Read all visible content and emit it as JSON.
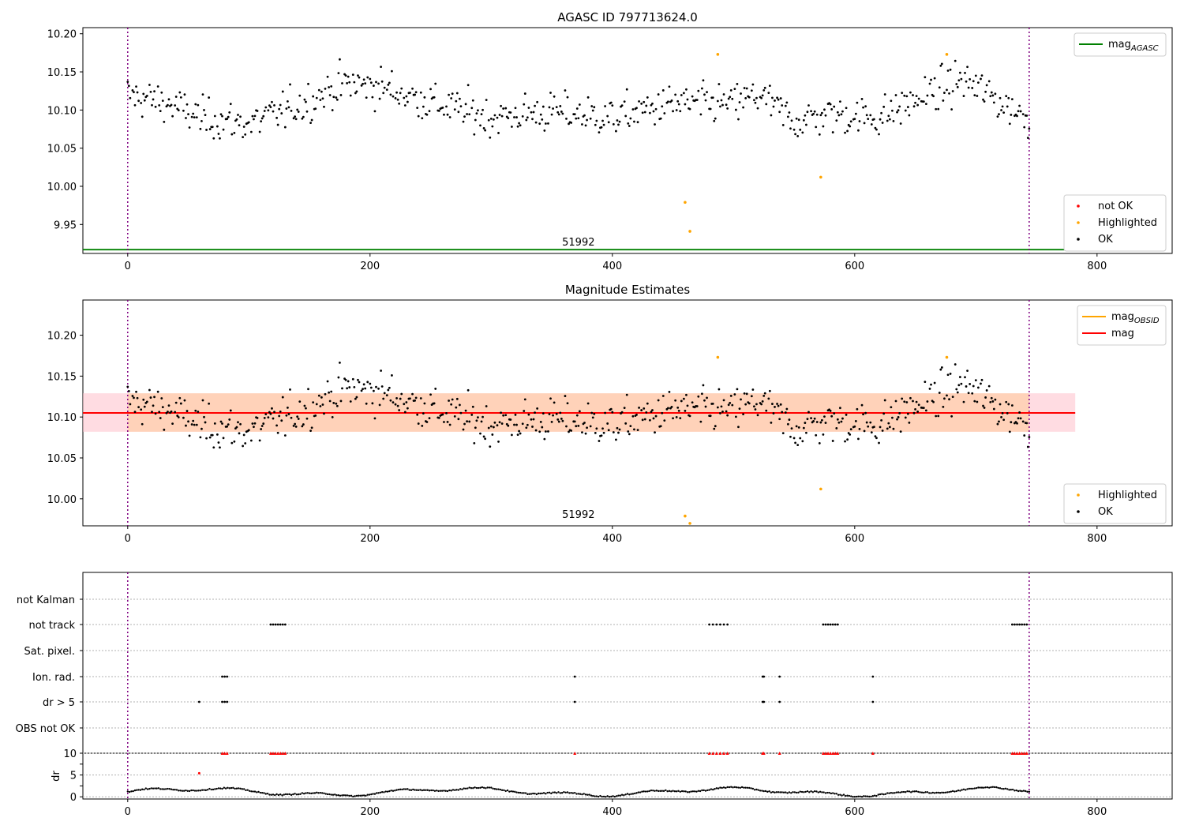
{
  "chart_data": [
    {
      "type": "scatter",
      "title": "AGASC ID 797713624.0",
      "xlim": [
        -37,
        862
      ],
      "ylim": [
        9.912,
        10.208
      ],
      "xticks": [
        0,
        200,
        400,
        600,
        800
      ],
      "yticks": [
        9.95,
        10.0,
        10.05,
        10.1,
        10.15,
        10.2
      ],
      "ytick_labels": [
        "9.95",
        "10.00",
        "10.05",
        "10.10",
        "10.15",
        "10.20"
      ],
      "vlines": [
        0,
        744
      ],
      "obsid_label": "51992",
      "obsid_label_x": 372,
      "mag_agasc": {
        "value": 9.917,
        "x_range": [
          -37,
          782
        ],
        "color": "#008000"
      },
      "legend_upper": [
        {
          "label": "mag",
          "sub": "AGASC",
          "color": "#008000",
          "style": "line"
        }
      ],
      "legend_lower": [
        {
          "label": "not OK",
          "color": "#ff0000",
          "style": "dot"
        },
        {
          "label": "Highlighted",
          "color": "#ffa500",
          "style": "dot"
        },
        {
          "label": "OK",
          "color": "#000000",
          "style": "dot"
        }
      ],
      "highlighted_points": [
        [
          460,
          9.979
        ],
        [
          464,
          9.941
        ],
        [
          487,
          10.173
        ],
        [
          572,
          10.012
        ],
        [
          676,
          10.173
        ]
      ],
      "ok_series_note": "OK",
      "seed": 7
    },
    {
      "type": "scatter",
      "title": "Magnitude Estimates",
      "xlim": [
        -37,
        862
      ],
      "ylim": [
        9.967,
        10.243
      ],
      "xticks": [
        0,
        200,
        400,
        600,
        800
      ],
      "yticks": [
        10.0,
        10.05,
        10.1,
        10.15,
        10.2
      ],
      "ytick_labels": [
        "10.00",
        "10.05",
        "10.10",
        "10.15",
        "10.20"
      ],
      "vlines": [
        0,
        744
      ],
      "obsid_label": "51992",
      "obsid_label_x": 372,
      "mag": {
        "value": 10.105,
        "band": [
          10.082,
          10.129
        ],
        "x_range": [
          -37,
          782
        ],
        "color": "#ff0000"
      },
      "mag_obsid": {
        "value": 10.105,
        "band": [
          10.082,
          10.129
        ],
        "x_range": [
          0,
          744
        ],
        "color": "#ffa500"
      },
      "legend_upper": [
        {
          "label": "mag",
          "sub": "OBSID",
          "color": "#ffa500",
          "style": "line"
        },
        {
          "label": "mag",
          "sub": "",
          "color": "#ff0000",
          "style": "line"
        }
      ],
      "legend_lower": [
        {
          "label": "Highlighted",
          "color": "#ffa500",
          "style": "dot"
        },
        {
          "label": "OK",
          "color": "#000000",
          "style": "dot"
        }
      ],
      "highlighted_points": [
        [
          460,
          9.979
        ],
        [
          464,
          9.97
        ],
        [
          487,
          10.173
        ],
        [
          572,
          10.012
        ],
        [
          676,
          10.173
        ]
      ]
    },
    {
      "type": "scatter",
      "title": "",
      "xlim": [
        -37,
        862
      ],
      "categories": [
        "not Kalman",
        "not track",
        "Sat. pixel.",
        "Ion. rad.",
        "dr > 5",
        "OBS not OK"
      ],
      "flags": {
        "not track": [
          118,
          120,
          122,
          124,
          126,
          128,
          130,
          480,
          483,
          486,
          489,
          492,
          495,
          574,
          576,
          578,
          580,
          582,
          584,
          586,
          730,
          732,
          734,
          736,
          738,
          740,
          742
        ],
        "Ion. rad.": [
          78,
          80,
          82,
          369,
          524,
          525,
          538,
          615
        ],
        "dr > 5": [
          59,
          78,
          80,
          82,
          369,
          524,
          525,
          538,
          615
        ]
      },
      "vlines": [
        0,
        744
      ]
    },
    {
      "type": "scatter",
      "title": "",
      "ylabel": "dr",
      "xlim": [
        -37,
        862
      ],
      "ylim": [
        -0.5,
        10
      ],
      "xticks": [
        0,
        200,
        400,
        600,
        800
      ],
      "yticks": [
        0,
        5,
        10
      ],
      "ytick_labels": [
        "0",
        "5",
        "10"
      ],
      "capped_points_x": [
        78,
        80,
        82,
        118,
        120,
        122,
        124,
        126,
        128,
        130,
        369,
        480,
        483,
        486,
        489,
        492,
        495,
        524,
        525,
        538,
        574,
        576,
        578,
        580,
        582,
        584,
        586,
        615,
        730,
        732,
        734,
        736,
        738,
        740,
        742
      ],
      "red_point": [
        59,
        5.4
      ],
      "vlines": [
        0,
        744
      ]
    }
  ]
}
